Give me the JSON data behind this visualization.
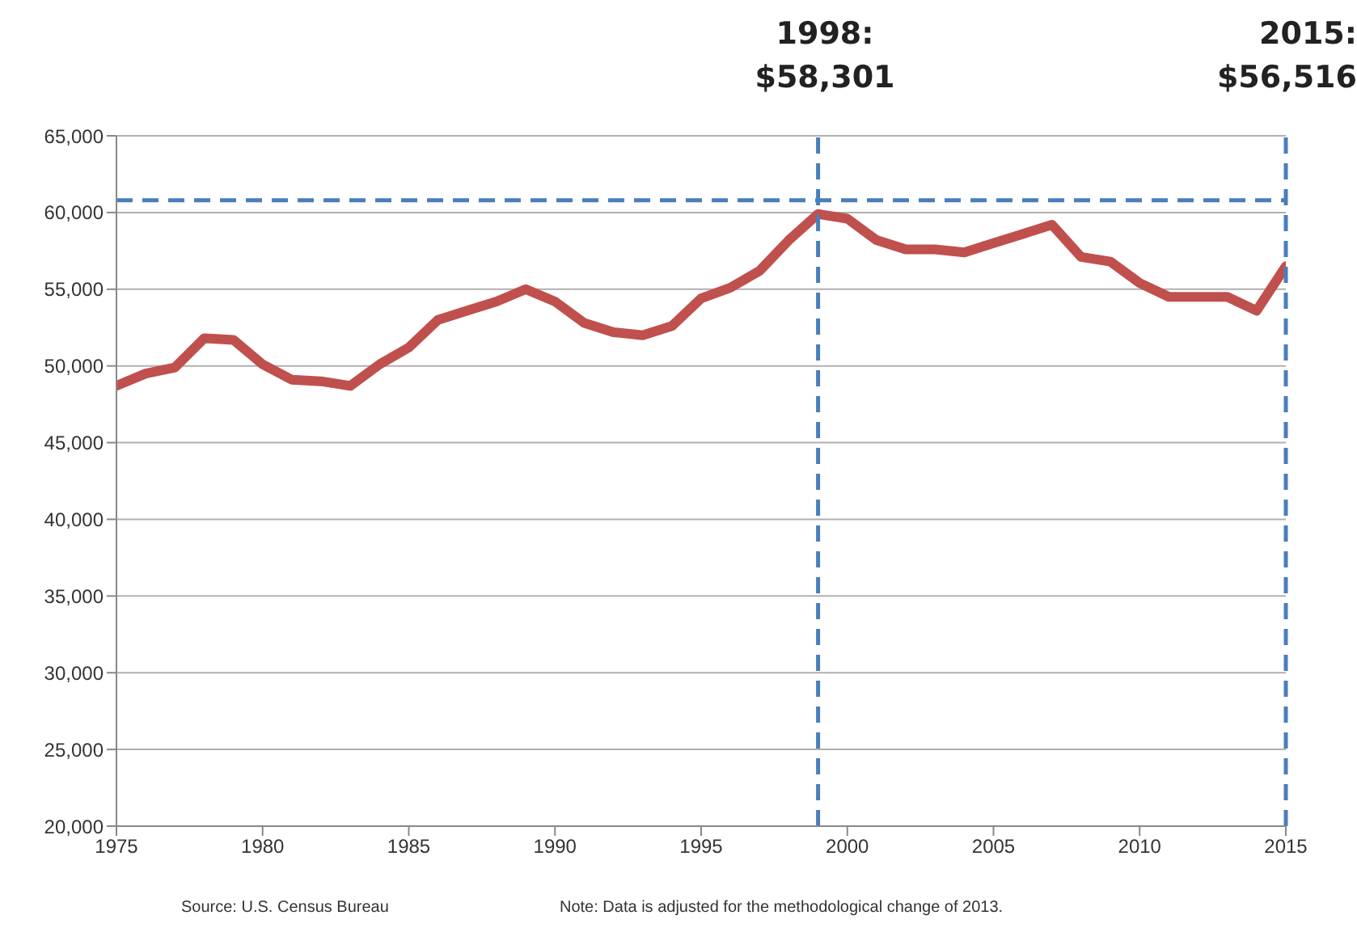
{
  "chart_data": {
    "type": "line",
    "x": [
      1975,
      1976,
      1977,
      1978,
      1979,
      1980,
      1981,
      1982,
      1983,
      1984,
      1985,
      1986,
      1987,
      1988,
      1989,
      1990,
      1991,
      1992,
      1993,
      1994,
      1995,
      1996,
      1997,
      1998,
      1999,
      2000,
      2001,
      2002,
      2003,
      2004,
      2005,
      2006,
      2007,
      2008,
      2009,
      2010,
      2011,
      2012,
      2013,
      2014,
      2015
    ],
    "series": [
      {
        "color": "#c0504d",
        "values": [
          48700,
          49500,
          49900,
          51800,
          51700,
          50100,
          49100,
          49000,
          48700,
          50100,
          51200,
          53000,
          53600,
          54200,
          55000,
          54200,
          52800,
          52200,
          52000,
          52600,
          54400,
          55100,
          56200,
          58200,
          59900,
          59600,
          58200,
          57600,
          57600,
          57400,
          58000,
          58600,
          59200,
          57100,
          56800,
          55400,
          54500,
          54500,
          54500,
          53600,
          56500
        ]
      }
    ],
    "xlim": [
      1975,
      2015
    ],
    "xticks": [
      1975,
      1980,
      1985,
      1990,
      1995,
      2000,
      2005,
      2010,
      2015
    ],
    "ylim": [
      20000,
      65000
    ],
    "yticks": [
      {
        "value": 20000,
        "label": "20,000"
      },
      {
        "value": 25000,
        "label": "25,000"
      },
      {
        "value": 30000,
        "label": "30,000"
      },
      {
        "value": 35000,
        "label": "35,000"
      },
      {
        "value": 40000,
        "label": "40,000"
      },
      {
        "value": 45000,
        "label": "45,000"
      },
      {
        "value": 50000,
        "label": "50,000"
      },
      {
        "value": 55000,
        "label": "55,000"
      },
      {
        "value": 60000,
        "label": "60,000"
      },
      {
        "value": 65000,
        "label": "65,000"
      }
    ],
    "grid": "y",
    "marker": "none",
    "line_style": "solid",
    "ref_lines": [
      {
        "axis": "y",
        "value": 60800,
        "color": "#4a7ebb",
        "line_style": "dashed"
      },
      {
        "axis": "x",
        "value": 1999,
        "color": "#4a7ebb",
        "line_style": "dashed"
      },
      {
        "axis": "x",
        "value": 2015,
        "color": "#4a7ebb",
        "line_style": "dashed"
      }
    ],
    "annotations": [
      "1998:\n$58,301",
      "2015:\n$56,516",
      "Source: U.S. Census Bureau",
      "Note: Data is adjusted for the methodological change of 2013."
    ]
  }
}
